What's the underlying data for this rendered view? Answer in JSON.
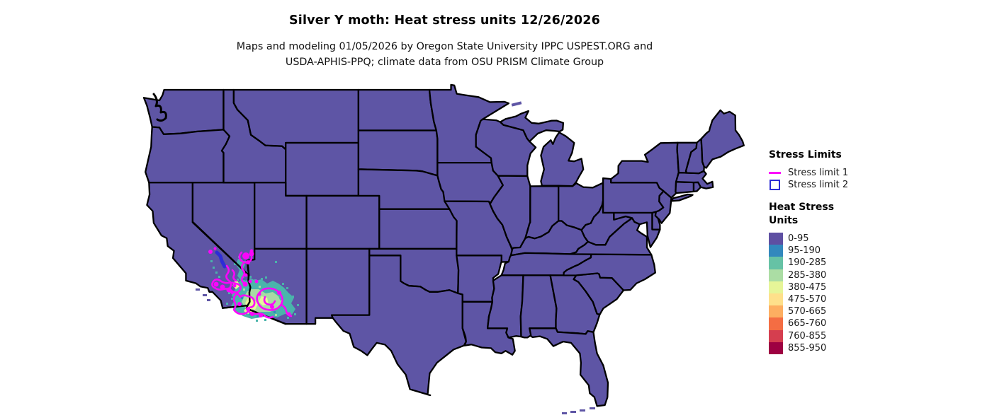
{
  "figure": {
    "title": "Silver Y moth: Heat stress units 12/26/2026",
    "subtitle_line1": "Maps and modeling 01/05/2026 by Oregon State University IPPC USPEST.ORG and",
    "subtitle_line2": "USDA-APHIS-PPQ; climate data from OSU PRISM Climate Group"
  },
  "legend_stress_limits": {
    "title": "Stress Limits",
    "items": [
      {
        "label": "Stress limit 1",
        "symbol": "line",
        "color": "#fb05fb"
      },
      {
        "label": "Stress limit 2",
        "symbol": "box",
        "color": "#2d2dd6"
      }
    ]
  },
  "legend_heat_stress": {
    "title_line1": "Heat Stress",
    "title_line2": "Units",
    "bins": [
      {
        "label": "0-95",
        "color": "#5e4fa2"
      },
      {
        "label": "95-190",
        "color": "#3288bd"
      },
      {
        "label": "190-285",
        "color": "#66c2a5"
      },
      {
        "label": "285-380",
        "color": "#abdda4"
      },
      {
        "label": "380-475",
        "color": "#e6f598"
      },
      {
        "label": "475-570",
        "color": "#fee08b"
      },
      {
        "label": "570-665",
        "color": "#fdae61"
      },
      {
        "label": "665-760",
        "color": "#f46d43"
      },
      {
        "label": "760-855",
        "color": "#d53e4f"
      },
      {
        "label": "855-950",
        "color": "#9e0142"
      }
    ]
  },
  "map": {
    "land_fill": "#5e55a5",
    "state_border": "#000000",
    "background": "#ffffff",
    "stress_limit1_color": "#fb05fb",
    "stress_limit2_color": "#2d2dd6",
    "raster_teal": "#4ab4ab",
    "raster_green": "#a8dba4",
    "raster_yellow": "#e9f69b",
    "raster_blue": "#3288bd"
  }
}
